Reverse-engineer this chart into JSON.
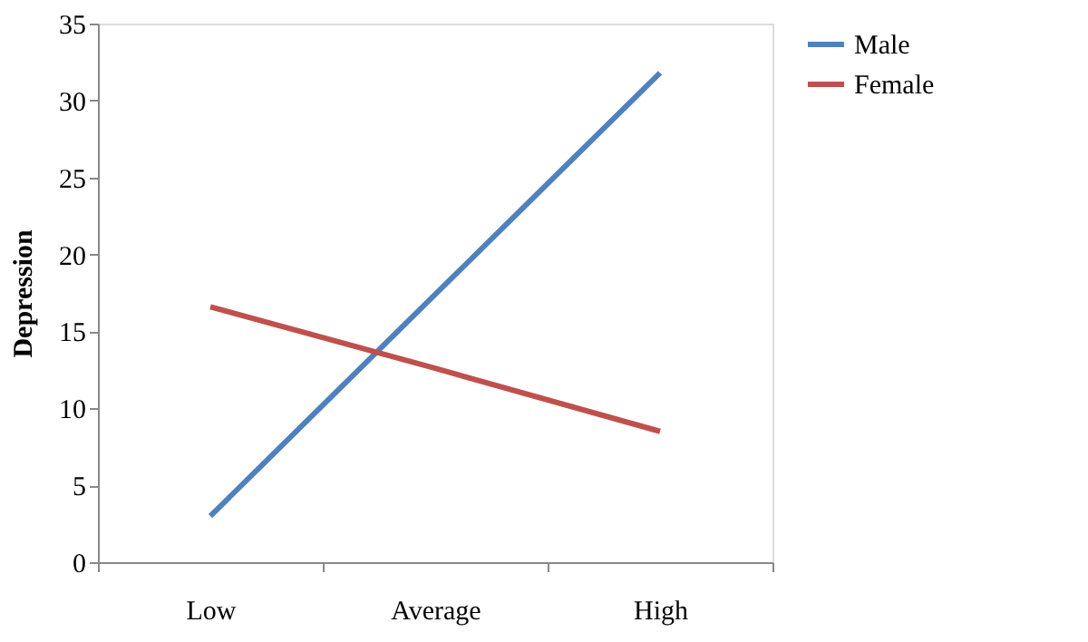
{
  "chart_data": {
    "type": "line",
    "ylabel": "Depression",
    "categories": [
      "Low",
      "Average",
      "High"
    ],
    "series": [
      {
        "name": "Male",
        "color": "#4f81bd",
        "values": [
          3,
          17.4,
          31.8
        ]
      },
      {
        "name": "Female",
        "color": "#c0504d",
        "values": [
          16.6,
          12.6,
          8.5
        ]
      }
    ],
    "ylim": [
      0,
      35
    ],
    "yticks": [
      0,
      5,
      10,
      15,
      20,
      25,
      30,
      35
    ],
    "grid": false,
    "legend": "right",
    "marker": "none",
    "line_style": "solid"
  }
}
